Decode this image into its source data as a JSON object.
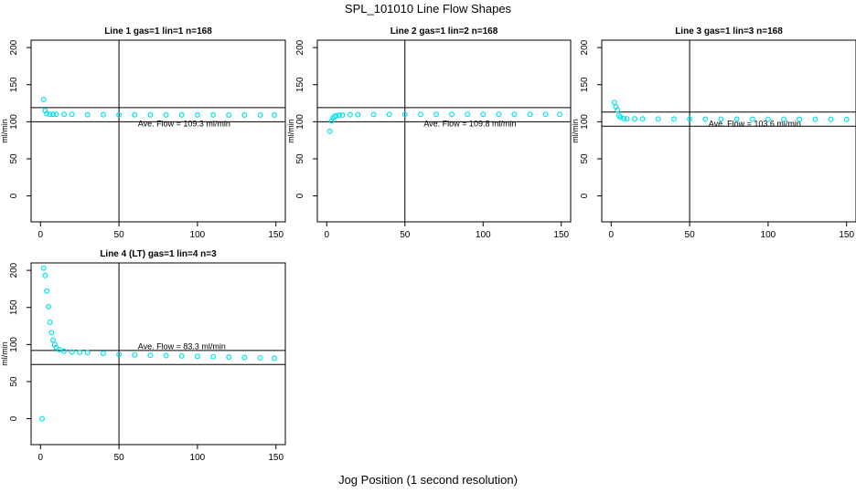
{
  "figure": {
    "title": "SPL_101010  Line Flow Shapes",
    "xlabel": "Jog Position (1 second resolution)"
  },
  "colors": {
    "points": "#00e5ee",
    "axes": "#000000"
  },
  "chart_data": [
    {
      "type": "scatter",
      "title": "Line 1 gas=1 lin=1 n=168",
      "ylabel": "ml/min",
      "xlim": [
        0,
        150
      ],
      "ylim": [
        -35,
        210
      ],
      "xticks": [
        0,
        50,
        100,
        150
      ],
      "yticks": [
        0,
        50,
        100,
        150,
        200
      ],
      "annotation": "Ave. Flow =  109.3  ml/min",
      "vline": 50,
      "hlines": [
        100,
        119
      ],
      "series": [
        {
          "name": "flow",
          "x": [
            2,
            3,
            4,
            6,
            8,
            10,
            15,
            20,
            30,
            40,
            50,
            60,
            70,
            80,
            90,
            100,
            110,
            120,
            130,
            140,
            149
          ],
          "values": [
            130,
            115,
            111,
            110,
            110,
            110,
            110,
            110,
            109.5,
            109.5,
            109.3,
            109.3,
            109.3,
            109.2,
            109.2,
            109.2,
            109.2,
            109.1,
            109.1,
            109.1,
            109
          ]
        }
      ]
    },
    {
      "type": "scatter",
      "title": "Line 2 gas=1 lin=2 n=168",
      "ylabel": "ml/min",
      "xlim": [
        0,
        150
      ],
      "ylim": [
        -35,
        210
      ],
      "xticks": [
        0,
        50,
        100,
        150
      ],
      "yticks": [
        0,
        50,
        100,
        150,
        200
      ],
      "annotation": "Ave. Flow =  109.8  ml/min",
      "vline": 50,
      "hlines": [
        100,
        119
      ],
      "series": [
        {
          "name": "flow",
          "x": [
            2,
            3,
            4,
            5,
            6,
            8,
            10,
            15,
            20,
            30,
            40,
            50,
            60,
            70,
            80,
            90,
            100,
            110,
            120,
            130,
            140,
            149
          ],
          "values": [
            87,
            101,
            105,
            107,
            108,
            109,
            109,
            109.5,
            109.5,
            109.8,
            109.8,
            109.8,
            109.8,
            109.9,
            109.9,
            110,
            110,
            110,
            110,
            110,
            110,
            110
          ]
        }
      ]
    },
    {
      "type": "scatter",
      "title": "Line 3 gas=1 lin=3 n=168",
      "ylabel": "ml/min",
      "xlim": [
        0,
        150
      ],
      "ylim": [
        -35,
        210
      ],
      "xticks": [
        0,
        50,
        100,
        150
      ],
      "yticks": [
        0,
        50,
        100,
        150,
        200
      ],
      "annotation": "Ave. Flow =  103.6  ml/min",
      "vline": 50,
      "hlines": [
        94,
        113
      ],
      "series": [
        {
          "name": "flow",
          "x": [
            2,
            3,
            4,
            5,
            6,
            8,
            10,
            15,
            20,
            30,
            40,
            50,
            60,
            70,
            80,
            90,
            100,
            110,
            120,
            130,
            140,
            150
          ],
          "values": [
            126,
            120,
            116,
            108,
            106,
            104.5,
            104,
            104,
            103.8,
            103.7,
            103.6,
            103.6,
            103.5,
            103.5,
            103.5,
            103.4,
            103.4,
            103.4,
            103.3,
            103.3,
            103.3,
            103.2
          ]
        }
      ]
    },
    {
      "type": "scatter",
      "title": "Line 4 (LT) gas=1 lin=4 n=3",
      "ylabel": "ml/min",
      "xlim": [
        0,
        150
      ],
      "ylim": [
        -35,
        210
      ],
      "xticks": [
        0,
        50,
        100,
        150
      ],
      "yticks": [
        0,
        50,
        100,
        150,
        200
      ],
      "annotation": "Ave. Flow =  83.3  ml/min",
      "vline": 50,
      "hlines": [
        73,
        92
      ],
      "series": [
        {
          "name": "flow",
          "x": [
            1,
            2,
            3,
            4,
            5,
            6,
            7,
            8,
            9,
            10,
            12,
            15,
            20,
            25,
            30,
            40,
            50,
            60,
            70,
            80,
            90,
            100,
            110,
            120,
            130,
            140,
            149
          ],
          "values": [
            0,
            203,
            193,
            172,
            151,
            130,
            116,
            106,
            100,
            96,
            93,
            91,
            90,
            89.5,
            89,
            88,
            86.5,
            86,
            85.5,
            85,
            84.5,
            84,
            83.5,
            83,
            82.5,
            82,
            81.5
          ]
        }
      ]
    }
  ]
}
